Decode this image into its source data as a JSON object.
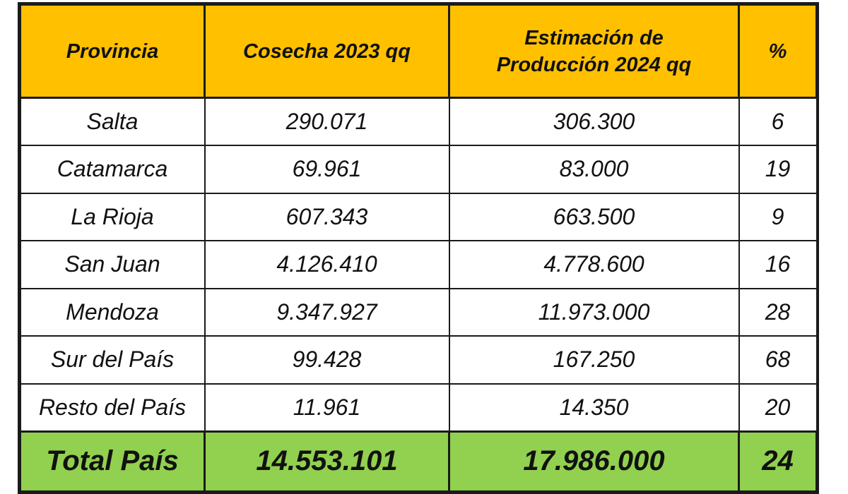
{
  "table": {
    "headers": {
      "provincia": "Provincia",
      "cosecha": "Cosecha 2023 qq",
      "estimacion_line1": "Estimación de",
      "estimacion_line2": "Producción 2024 qq",
      "percent": "%"
    },
    "rows": [
      {
        "provincia": "Salta",
        "cosecha": "290.071",
        "estimacion": "306.300",
        "percent": "6"
      },
      {
        "provincia": "Catamarca",
        "cosecha": "69.961",
        "estimacion": "83.000",
        "percent": "19"
      },
      {
        "provincia": "La Rioja",
        "cosecha": "607.343",
        "estimacion": "663.500",
        "percent": "9"
      },
      {
        "provincia": "San Juan",
        "cosecha": "4.126.410",
        "estimacion": "4.778.600",
        "percent": "16"
      },
      {
        "provincia": "Mendoza",
        "cosecha": "9.347.927",
        "estimacion": "11.973.000",
        "percent": "28"
      },
      {
        "provincia": "Sur del País",
        "cosecha": "99.428",
        "estimacion": "167.250",
        "percent": "68"
      },
      {
        "provincia": "Resto del País",
        "cosecha": "11.961",
        "estimacion": "14.350",
        "percent": "20"
      }
    ],
    "total": {
      "provincia": "Total País",
      "cosecha": "14.553.101",
      "estimacion": "17.986.000",
      "percent": "24"
    }
  },
  "colors": {
    "header_background": "#ffc000",
    "total_background": "#92d050",
    "border": "#1a1a1a"
  }
}
